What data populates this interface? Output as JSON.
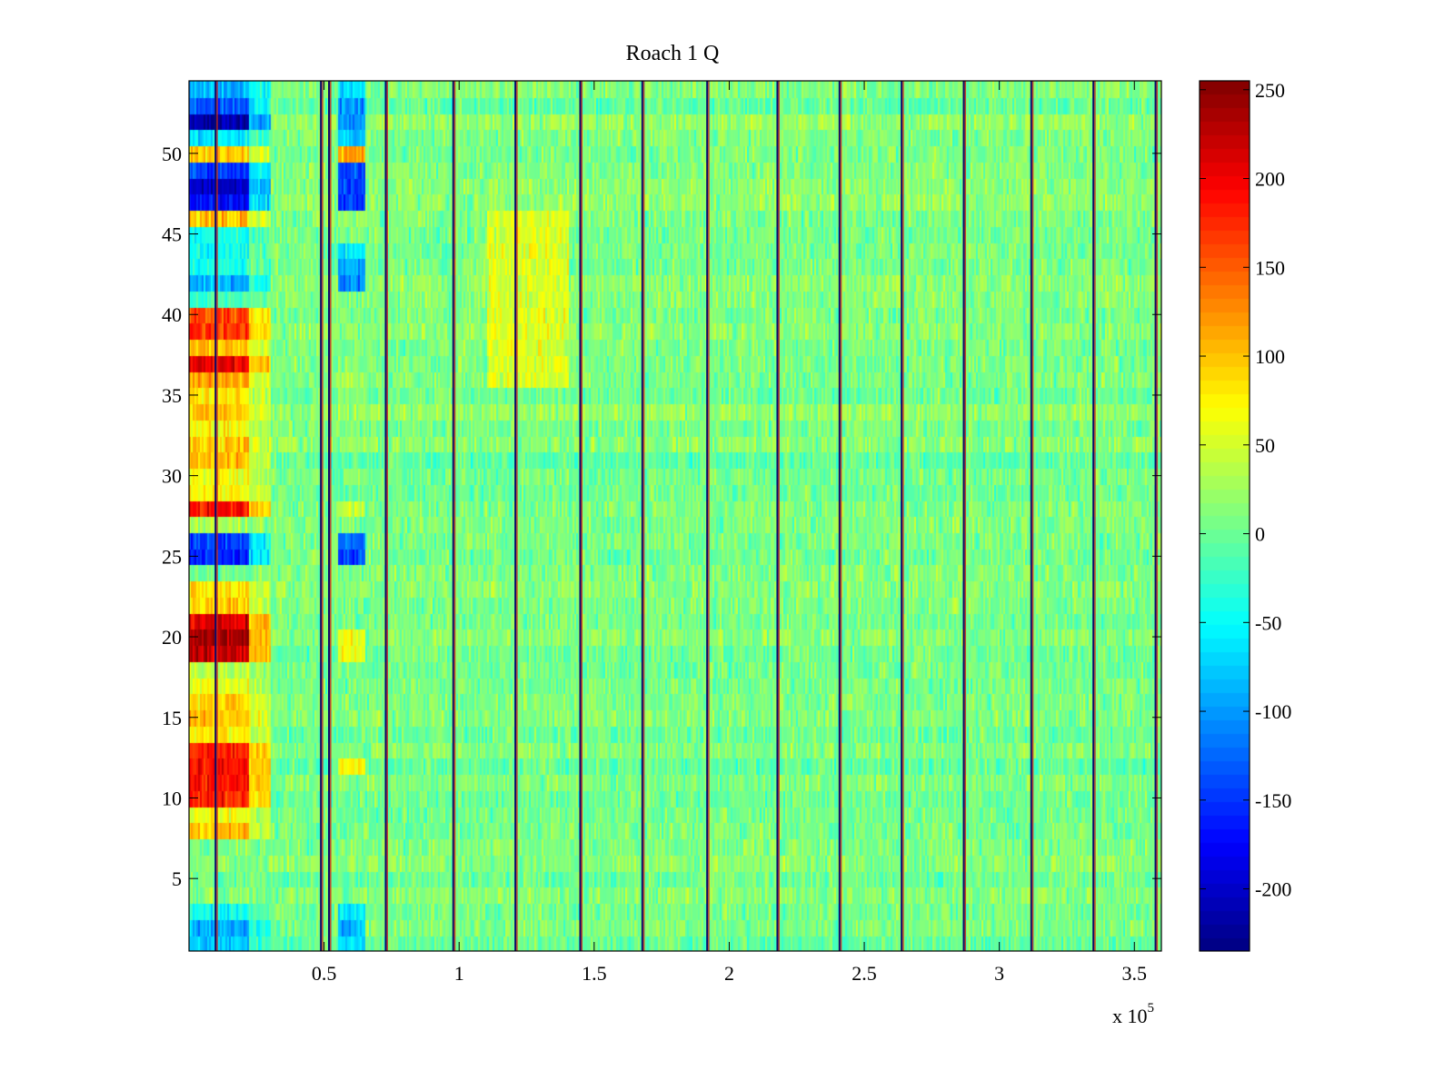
{
  "chart_data": {
    "type": "heatmap",
    "title": "Roach 1 Q",
    "xlabel": "",
    "ylabel": "",
    "x_exponent_label": "x 10",
    "x_exponent_power": "5",
    "xlim": [
      0,
      3.6
    ],
    "ylim": [
      0.5,
      54.5
    ],
    "rows": 54,
    "x_ticks": [
      0.5,
      1,
      1.5,
      2,
      2.5,
      3,
      3.5
    ],
    "x_tick_labels": [
      "0.5",
      "1",
      "1.5",
      "2",
      "2.5",
      "3",
      "3.5"
    ],
    "y_ticks": [
      5,
      10,
      15,
      20,
      25,
      30,
      35,
      40,
      45,
      50
    ],
    "y_tick_labels": [
      "5",
      "10",
      "15",
      "20",
      "25",
      "30",
      "35",
      "40",
      "45",
      "50"
    ],
    "colorbar": {
      "colormap": "jet",
      "clim": [
        -235,
        255
      ],
      "ticks": [
        250,
        200,
        150,
        100,
        50,
        0,
        -50,
        -100,
        -150,
        -200
      ],
      "tick_labels": [
        "250",
        "200",
        "150",
        "100",
        "50",
        "0",
        "-50",
        "-100",
        "-150",
        "-200"
      ]
    },
    "vertical_stripes_x": [
      0.1,
      0.49,
      0.52,
      0.73,
      0.98,
      1.21,
      1.45,
      1.68,
      1.92,
      2.18,
      2.41,
      2.64,
      2.87,
      3.12,
      3.35,
      3.58
    ],
    "early_block_x_range": [
      0,
      0.22
    ],
    "mid_block_x_range": [
      0.55,
      0.65
    ],
    "early_block_row_values": {
      "1": -80,
      "2": -90,
      "3": -40,
      "8": 100,
      "9": 70,
      "10": 180,
      "11": 190,
      "12": 195,
      "13": 180,
      "14": 80,
      "15": 100,
      "16": 90,
      "17": 60,
      "18": 40,
      "19": 220,
      "20": 235,
      "21": 215,
      "22": 90,
      "23": 85,
      "24": 0,
      "25": -160,
      "26": -140,
      "27": 30,
      "28": 190,
      "29": 70,
      "30": 70,
      "31": 100,
      "32": 95,
      "33": 70,
      "34": 100,
      "35": 80,
      "36": 110,
      "37": 200,
      "38": 100,
      "39": 170,
      "40": 160,
      "41": -20,
      "42": -90,
      "43": -40,
      "44": -40,
      "45": -40,
      "46": 100,
      "47": -170,
      "48": -200,
      "49": -140,
      "50": 100,
      "51": -60,
      "52": -220,
      "53": -130,
      "54": -90
    },
    "mid_block_row_values": {
      "1": -60,
      "2": -90,
      "3": -60,
      "12": 70,
      "19": 60,
      "20": 60,
      "25": -140,
      "26": -120,
      "28": 40,
      "35": 10,
      "36": 30,
      "42": -110,
      "43": -90,
      "44": -60,
      "47": -150,
      "48": -140,
      "49": -140,
      "50": 120,
      "51": -80,
      "52": -100,
      "53": -100,
      "54": -70
    },
    "warm_region": {
      "x_range": [
        1.1,
        1.4
      ],
      "rows": [
        36,
        46
      ],
      "value": 55
    }
  }
}
